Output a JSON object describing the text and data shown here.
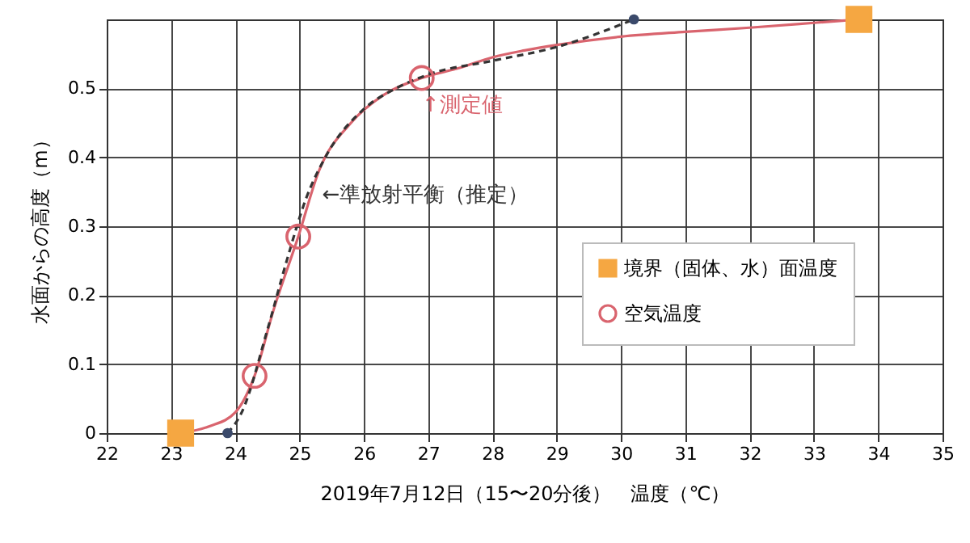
{
  "chart_data": {
    "type": "scatter",
    "xlabel": "2019年7月12日（15〜20分後）　温度（℃）",
    "ylabel": "水面からの高度（m）",
    "xlim": [
      22,
      35
    ],
    "xticks": [
      22,
      23,
      24,
      25,
      26,
      27,
      28,
      29,
      30,
      31,
      32,
      33,
      34,
      35
    ],
    "ylim": [
      0,
      0.6
    ],
    "yticks": [
      0,
      0.1,
      0.2,
      0.3,
      0.4,
      0.5
    ],
    "grid": true,
    "legend": "bottom right",
    "series": [
      {
        "type": "line",
        "color": "#d9646e",
        "line_style": "solid",
        "marker": "none",
        "x": [
          23.15,
          23.6,
          24.0,
          24.3,
          24.6,
          24.98,
          25.3,
          25.8,
          26.3,
          26.9,
          27.5,
          28,
          28.5,
          29,
          30,
          31,
          32,
          33,
          33.7
        ],
        "values": [
          0,
          0.01,
          0.03,
          0.083,
          0.18,
          0.285,
          0.38,
          0.45,
          0.49,
          0.515,
          0.53,
          0.545,
          0.555,
          0.563,
          0.575,
          0.582,
          0.588,
          0.595,
          0.6
        ]
      },
      {
        "type": "line",
        "color": "#333333",
        "line_style": "dashed",
        "marker": "none",
        "x": [
          23.88,
          24.1,
          24.5,
          24.8,
          25.1,
          25.4,
          26,
          26.5,
          27,
          28,
          29,
          30.2
        ],
        "values": [
          0,
          0.03,
          0.15,
          0.25,
          0.34,
          0.4,
          0.47,
          0.5,
          0.52,
          0.54,
          0.56,
          0.6
        ]
      },
      {
        "type": "scatter",
        "color": "#3b4a6b",
        "marker": "circle",
        "x": [
          23.88,
          30.2
        ],
        "values": [
          0,
          0.6
        ]
      },
      {
        "type": "scatter",
        "name": "境界（固体、水）面温度",
        "color": "#f5a742",
        "marker": "square",
        "x": [
          23.15,
          33.7
        ],
        "values": [
          0,
          0.6
        ]
      },
      {
        "type": "scatter",
        "name": "空気温度",
        "color": "#d9646e",
        "marker": "circle",
        "x": [
          24.3,
          24.98,
          26.9
        ],
        "values": [
          0.083,
          0.285,
          0.515
        ]
      }
    ],
    "annotations": [
      {
        "text": "←準放射平衡（推定）",
        "x": 25.3,
        "y": 0.36
      },
      {
        "text": "↑測定値",
        "x": 26.85,
        "y": 0.49
      }
    ]
  }
}
